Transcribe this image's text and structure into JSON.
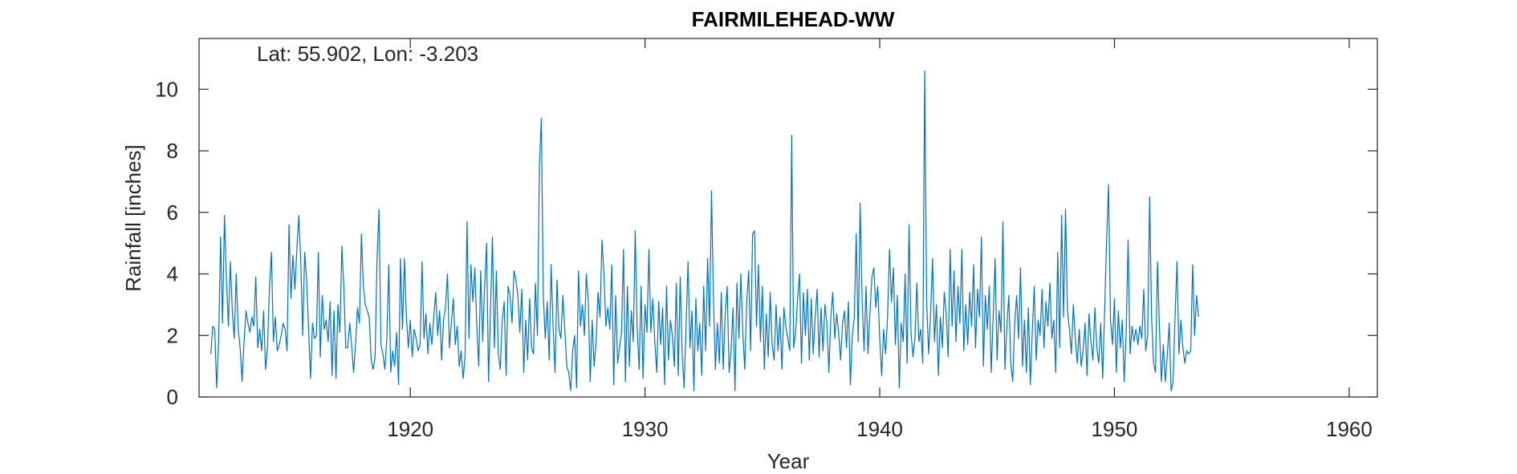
{
  "chart_data": {
    "type": "line",
    "title": "FAIRMILEHEAD-WW",
    "annotation": "Lat: 55.902, Lon: -3.203",
    "xlabel": "Year",
    "ylabel": "Rainfall [inches]",
    "xlim": [
      1911.0,
      1961.2
    ],
    "ylim": [
      0,
      11.65
    ],
    "xticks": [
      1920,
      1930,
      1940,
      1950,
      1960
    ],
    "xtick_labels": [
      "1920",
      "1930",
      "1940",
      "1950",
      "1960"
    ],
    "yticks": [
      0,
      2,
      4,
      6,
      8,
      10
    ],
    "ytick_labels": [
      "0",
      "2",
      "4",
      "6",
      "8",
      "10"
    ],
    "grid": false,
    "legend": "none",
    "line_color": "#0072bd",
    "x_start": 1911.5,
    "x_step": 0.08333,
    "series": [
      {
        "values": [
          1.4,
          2.3,
          2.2,
          0.3,
          1.8,
          5.2,
          2.4,
          5.9,
          3.8,
          2.3,
          4.4,
          2.8,
          1.9,
          4.0,
          2.2,
          1.6,
          0.5,
          1.8,
          2.8,
          2.4,
          2.1,
          2.6,
          2.3,
          3.9,
          1.6,
          2.2,
          1.5,
          2.8,
          0.9,
          1.6,
          3.6,
          4.7,
          1.8,
          2.6,
          1.5,
          1.7,
          2.0,
          2.4,
          2.2,
          1.5,
          5.6,
          3.2,
          4.6,
          3.5,
          4.8,
          5.9,
          4.4,
          2.0,
          4.7,
          3.8,
          2.2,
          0.6,
          2.4,
          1.9,
          2.0,
          4.7,
          1.3,
          3.3,
          2.2,
          2.5,
          1.8,
          3.1,
          0.7,
          2.8,
          0.6,
          3.0,
          2.1,
          4.9,
          3.6,
          1.6,
          1.6,
          2.4,
          1.7,
          0.8,
          1.7,
          2.9,
          2.4,
          5.3,
          3.6,
          3.0,
          2.8,
          2.6,
          1.2,
          0.9,
          1.3,
          4.5,
          6.1,
          1.7,
          1.4,
          0.9,
          1.9,
          4.3,
          0.8,
          1.5,
          1.0,
          2.1,
          0.4,
          4.5,
          2.2,
          4.5,
          2.6,
          1.6,
          2.5,
          1.3,
          2.2,
          1.9,
          1.5,
          1.7,
          4.4,
          1.9,
          2.7,
          1.4,
          2.4,
          1.7,
          2.6,
          3.4,
          2.0,
          2.8,
          1.2,
          2.5,
          2.9,
          4.0,
          1.6,
          2.4,
          3.2,
          1.7,
          2.3,
          1.0,
          1.5,
          0.6,
          1.3,
          5.7,
          1.9,
          4.3,
          3.1,
          4.2,
          2.3,
          1.0,
          4.1,
          1.8,
          3.6,
          5.0,
          0.5,
          2.8,
          5.2,
          1.6,
          4.1,
          1.4,
          0.9,
          2.5,
          3.1,
          0.7,
          3.6,
          3.3,
          2.4,
          4.1,
          3.8,
          3.3,
          2.1,
          3.5,
          0.8,
          2.5,
          1.2,
          3.2,
          1.6,
          1.4,
          3.7,
          2.0,
          7.5,
          9.05,
          3.3,
          1.9,
          3.1,
          1.2,
          4.3,
          2.3,
          0.8,
          3.8,
          2.2,
          1.9,
          3.3,
          2.2,
          1.0,
          0.8,
          0.2,
          1.5,
          2.0,
          0.3,
          4.1,
          2.3,
          3.0,
          2.0,
          4.0,
          3.1,
          0.5,
          2.5,
          1.0,
          1.8,
          3.4,
          2.6,
          5.1,
          4.0,
          2.3,
          2.9,
          2.2,
          4.3,
          0.4,
          3.3,
          1.1,
          1.6,
          2.1,
          4.8,
          0.5,
          3.6,
          1.0,
          2.8,
          1.8,
          5.4,
          2.2,
          0.9,
          3.6,
          0.6,
          3.0,
          2.1,
          4.8,
          2.1,
          3.2,
          1.8,
          0.8,
          3.1,
          1.7,
          2.9,
          0.4,
          3.6,
          1.2,
          2.5,
          2.0,
          1.0,
          3.7,
          0.7,
          3.9,
          1.4,
          0.3,
          2.3,
          4.4,
          1.6,
          2.8,
          0.2,
          3.2,
          1.5,
          2.4,
          0.7,
          3.6,
          1.5,
          4.5,
          2.3,
          6.7,
          3.2,
          0.9,
          2.4,
          1.1,
          3.4,
          0.9,
          2.7,
          3.6,
          0.8,
          1.5,
          2.9,
          0.2,
          3.7,
          1.9,
          4.0,
          2.1,
          0.9,
          3.1,
          4.1,
          1.5,
          5.3,
          5.4,
          2.3,
          4.3,
          1.8,
          3.6,
          0.9,
          2.7,
          1.3,
          3.4,
          1.7,
          1.2,
          3.0,
          1.5,
          2.6,
          0.9,
          2.9,
          2.3,
          1.9,
          1.5,
          8.5,
          1.6,
          2.1,
          3.2,
          4.0,
          1.1,
          3.4,
          2.0,
          3.5,
          1.2,
          3.2,
          1.4,
          2.6,
          3.5,
          1.3,
          2.9,
          1.5,
          3.0,
          2.4,
          0.8,
          2.6,
          3.4,
          1.9,
          2.7,
          2.1,
          1.2,
          2.4,
          2.8,
          1.6,
          3.1,
          0.4,
          2.0,
          2.6,
          5.3,
          1.8,
          6.3,
          3.2,
          1.5,
          3.6,
          1.4,
          2.7,
          3.9,
          4.2,
          2.9,
          3.6,
          1.9,
          0.7,
          2.2,
          1.4,
          2.6,
          4.8,
          3.1,
          4.2,
          1.7,
          3.3,
          0.3,
          2.4,
          1.8,
          4.0,
          1.1,
          5.6,
          2.1,
          1.3,
          1.9,
          3.7,
          1.8,
          2.2,
          1.1,
          10.6,
          3.1,
          1.4,
          2.7,
          4.5,
          1.8,
          3.0,
          0.7,
          2.6,
          1.6,
          3.4,
          2.7,
          1.3,
          4.8,
          2.3,
          4.1,
          1.8,
          3.6,
          2.4,
          4.8,
          1.5,
          3.0,
          1.7,
          3.4,
          2.3,
          4.3,
          1.6,
          3.5,
          2.6,
          5.2,
          1.0,
          3.3,
          2.2,
          3.6,
          0.8,
          2.6,
          4.5,
          1.2,
          2.8,
          2.1,
          5.7,
          0.9,
          2.3,
          3.3,
          1.1,
          0.5,
          2.4,
          3.3,
          1.9,
          4.2,
          1.0,
          2.5,
          0.8,
          2.9,
          0.4,
          2.1,
          3.6,
          1.2,
          2.5,
          2.0,
          3.5,
          1.6,
          3.1,
          2.3,
          3.7,
          1.9,
          2.5,
          0.8,
          4.7,
          1.6,
          5.9,
          2.6,
          6.1,
          2.8,
          2.2,
          1.4,
          3.0,
          1.9,
          1.1,
          2.2,
          1.0,
          1.5,
          2.4,
          0.7,
          2.7,
          1.8,
          1.2,
          2.9,
          1.6,
          1.1,
          2.4,
          0.6,
          2.8,
          5.1,
          6.9,
          2.5,
          1.7,
          3.2,
          0.8,
          2.8,
          1.6,
          2.5,
          0.5,
          2.1,
          5.1,
          1.4,
          2.3,
          1.8,
          2.2,
          1.7,
          2.3,
          1.9,
          3.5,
          1.5,
          2.0,
          6.5,
          2.6,
          1.1,
          0.8,
          4.4,
          2.3,
          0.5,
          1.7,
          0.5,
          1.3,
          2.4,
          0.2,
          0.5,
          2.6,
          4.4,
          1.4,
          2.5,
          1.6,
          1.1,
          1.5,
          1.4,
          1.5,
          4.3,
          2.0,
          3.3,
          2.6
        ]
      }
    ]
  }
}
